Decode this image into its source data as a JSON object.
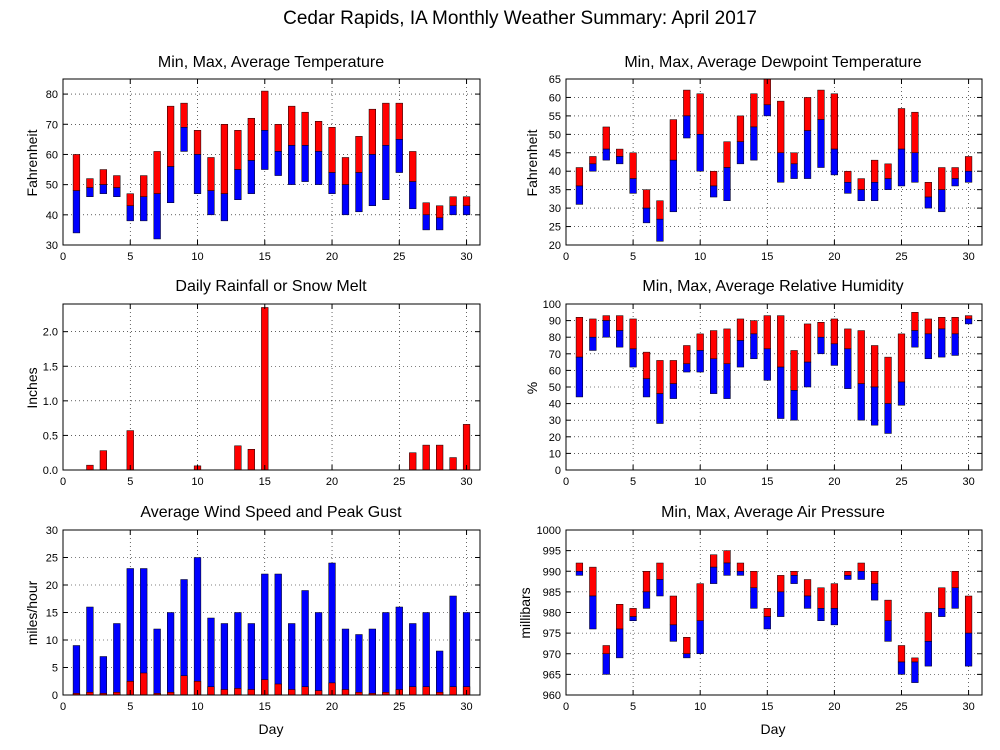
{
  "figure": {
    "title": "Cedar Rapids, IA Monthly Weather Summary: April 2017"
  },
  "colors": {
    "upper": "#ff0000",
    "lower": "#0000ff",
    "outline": "#000000",
    "grid": "#000000"
  },
  "chart_data": [
    {
      "id": "temperature",
      "type": "bar",
      "style": "range",
      "title": "Min, Max, Average Temperature",
      "xlabel": "",
      "ylabel": "Fahrenheit",
      "xlim": [
        0,
        31
      ],
      "ylim": [
        30,
        85
      ],
      "xticks": [
        0,
        5,
        10,
        15,
        20,
        25,
        30
      ],
      "yticks": [
        30,
        40,
        50,
        60,
        70,
        80
      ],
      "x": [
        1,
        2,
        3,
        4,
        5,
        6,
        7,
        8,
        9,
        10,
        11,
        12,
        13,
        14,
        15,
        16,
        17,
        18,
        19,
        20,
        21,
        22,
        23,
        24,
        25,
        26,
        27,
        28,
        29,
        30
      ],
      "min": [
        34,
        46,
        47,
        46,
        38,
        38,
        32,
        44,
        61,
        47,
        40,
        38,
        45,
        47,
        55,
        53,
        50,
        51,
        50,
        47,
        40,
        41,
        43,
        45,
        54,
        42,
        35,
        35,
        40,
        40
      ],
      "avg": [
        48,
        49,
        50,
        49,
        43,
        46,
        47,
        56,
        69,
        60,
        48,
        47,
        55,
        58,
        68,
        61,
        63,
        63,
        61,
        54,
        50,
        54,
        60,
        63,
        65,
        51,
        40,
        39,
        43,
        43
      ],
      "max": [
        60,
        52,
        55,
        53,
        47,
        53,
        61,
        76,
        77,
        68,
        59,
        70,
        68,
        72,
        81,
        70,
        76,
        74,
        71,
        69,
        59,
        66,
        75,
        77,
        77,
        61,
        44,
        43,
        46,
        46
      ]
    },
    {
      "id": "dewpoint",
      "type": "bar",
      "style": "range",
      "title": "Min, Max, Average Dewpoint Temperature",
      "xlabel": "",
      "ylabel": "Fahrenheit",
      "xlim": [
        0,
        31
      ],
      "ylim": [
        20,
        65
      ],
      "xticks": [
        0,
        5,
        10,
        15,
        20,
        25,
        30
      ],
      "yticks": [
        20,
        25,
        30,
        35,
        40,
        45,
        50,
        55,
        60,
        65
      ],
      "x": [
        1,
        2,
        3,
        4,
        5,
        6,
        7,
        8,
        9,
        10,
        11,
        12,
        13,
        14,
        15,
        16,
        17,
        18,
        19,
        20,
        21,
        22,
        23,
        24,
        25,
        26,
        27,
        28,
        29,
        30
      ],
      "min": [
        31,
        40,
        43,
        42,
        34,
        26,
        21,
        29,
        49,
        40,
        33,
        32,
        42,
        43,
        55,
        37,
        38,
        38,
        41,
        39,
        34,
        32,
        32,
        35,
        36,
        37,
        30,
        29,
        36,
        37
      ],
      "avg": [
        36,
        42,
        46,
        44,
        38,
        30,
        27,
        43,
        55,
        50,
        36,
        41,
        48,
        52,
        58,
        45,
        42,
        51,
        54,
        46,
        37,
        35,
        37,
        38,
        46,
        45,
        33,
        35,
        38,
        40
      ],
      "max": [
        41,
        44,
        52,
        46,
        45,
        35,
        32,
        54,
        62,
        61,
        40,
        48,
        55,
        61,
        65,
        59,
        45,
        60,
        62,
        61,
        40,
        38,
        43,
        42,
        57,
        56,
        37,
        41,
        41,
        44
      ]
    },
    {
      "id": "rainfall",
      "type": "bar",
      "style": "single",
      "title": "Daily Rainfall or Snow Melt",
      "xlabel": "",
      "ylabel": "Inches",
      "xlim": [
        0,
        31
      ],
      "ylim": [
        0,
        2.4
      ],
      "xticks": [
        0,
        5,
        10,
        15,
        20,
        25,
        30
      ],
      "yticks": [
        0,
        0.5,
        1,
        1.5,
        2
      ],
      "ytick_labels": [
        "0.0",
        "0.5",
        "1.0",
        "1.5",
        "2.0"
      ],
      "x": [
        1,
        2,
        3,
        4,
        5,
        6,
        7,
        8,
        9,
        10,
        11,
        12,
        13,
        14,
        15,
        16,
        17,
        18,
        19,
        20,
        21,
        22,
        23,
        24,
        25,
        26,
        27,
        28,
        29,
        30
      ],
      "values": [
        0,
        0.07,
        0.28,
        0,
        0.57,
        0,
        0,
        0,
        0,
        0.06,
        0,
        0,
        0.35,
        0.3,
        2.35,
        0,
        0,
        0,
        0,
        0,
        0,
        0,
        0,
        0,
        0,
        0.25,
        0.36,
        0.36,
        0.18,
        0.66
      ]
    },
    {
      "id": "humidity",
      "type": "bar",
      "style": "range",
      "title": "Min, Max, Average Relative Humidity",
      "xlabel": "",
      "ylabel": "%",
      "xlim": [
        0,
        31
      ],
      "ylim": [
        0,
        100
      ],
      "xticks": [
        0,
        5,
        10,
        15,
        20,
        25,
        30
      ],
      "yticks": [
        0,
        10,
        20,
        30,
        40,
        50,
        60,
        70,
        80,
        90,
        100
      ],
      "x": [
        1,
        2,
        3,
        4,
        5,
        6,
        7,
        8,
        9,
        10,
        11,
        12,
        13,
        14,
        15,
        16,
        17,
        18,
        19,
        20,
        21,
        22,
        23,
        24,
        25,
        26,
        27,
        28,
        29,
        30
      ],
      "min": [
        44,
        72,
        80,
        74,
        62,
        44,
        28,
        43,
        59,
        59,
        46,
        43,
        62,
        67,
        54,
        31,
        30,
        50,
        70,
        63,
        49,
        30,
        27,
        22,
        39,
        74,
        67,
        68,
        69,
        88
      ],
      "avg": [
        68,
        80,
        90,
        84,
        73,
        55,
        46,
        52,
        64,
        72,
        67,
        64,
        78,
        82,
        73,
        62,
        48,
        65,
        80,
        76,
        73,
        52,
        50,
        40,
        53,
        84,
        82,
        85,
        82,
        91
      ],
      "max": [
        92,
        91,
        93,
        93,
        91,
        71,
        66,
        66,
        75,
        82,
        84,
        85,
        91,
        90,
        93,
        93,
        72,
        88,
        89,
        91,
        85,
        84,
        75,
        68,
        82,
        95,
        91,
        92,
        92,
        93
      ]
    },
    {
      "id": "wind",
      "type": "bar",
      "style": "overlay",
      "title": "Average Wind Speed and Peak Gust",
      "xlabel": "Day",
      "ylabel": "miles/hour",
      "xlim": [
        0,
        31
      ],
      "ylim": [
        0,
        30
      ],
      "xticks": [
        0,
        5,
        10,
        15,
        20,
        25,
        30
      ],
      "yticks": [
        0,
        5,
        10,
        15,
        20,
        25,
        30
      ],
      "x": [
        1,
        2,
        3,
        4,
        5,
        6,
        7,
        8,
        9,
        10,
        11,
        12,
        13,
        14,
        15,
        16,
        17,
        18,
        19,
        20,
        21,
        22,
        23,
        24,
        25,
        26,
        27,
        28,
        29,
        30
      ],
      "series": [
        {
          "name": "",
          "values": [
            9,
            16,
            7,
            13,
            23,
            23,
            12,
            15,
            21,
            25,
            14,
            13,
            15,
            13,
            22,
            22,
            13,
            19,
            15,
            24,
            12,
            11,
            12,
            15,
            16,
            13,
            15,
            8,
            18,
            15
          ]
        },
        {
          "name": "",
          "values": [
            0.3,
            0.5,
            0.3,
            0.5,
            2.5,
            4,
            0.3,
            0.5,
            3.5,
            2.5,
            1.5,
            1,
            1.2,
            1,
            2.8,
            2,
            1,
            1.5,
            0.8,
            2.2,
            1,
            0.5,
            0.3,
            0.5,
            1,
            1.5,
            1.5,
            0.5,
            1.5,
            1.5
          ]
        }
      ]
    },
    {
      "id": "pressure",
      "type": "bar",
      "style": "range",
      "title": "Min, Max, Average Air Pressure",
      "xlabel": "Day",
      "ylabel": "millibars",
      "xlim": [
        0,
        31
      ],
      "ylim": [
        960,
        1000
      ],
      "xticks": [
        0,
        5,
        10,
        15,
        20,
        25,
        30
      ],
      "yticks": [
        960,
        965,
        970,
        975,
        980,
        985,
        990,
        995,
        1000
      ],
      "x": [
        1,
        2,
        3,
        4,
        5,
        6,
        7,
        8,
        9,
        10,
        11,
        12,
        13,
        14,
        15,
        16,
        17,
        18,
        19,
        20,
        21,
        22,
        23,
        24,
        25,
        26,
        27,
        28,
        29,
        30
      ],
      "min": [
        989,
        976,
        965,
        969,
        978,
        981,
        984,
        973,
        969,
        970,
        987,
        989,
        989,
        981,
        976,
        979,
        987,
        981,
        978,
        977,
        988,
        988,
        983,
        973,
        965,
        963,
        967,
        979,
        981,
        967
      ],
      "avg": [
        990,
        984,
        970,
        976,
        979,
        985,
        988,
        977,
        970,
        978,
        991,
        992,
        990,
        986,
        979,
        985,
        989,
        984,
        981,
        981,
        989,
        990,
        987,
        978,
        968,
        968,
        973,
        981,
        986,
        975
      ],
      "max": [
        992,
        991,
        972,
        982,
        981,
        990,
        992,
        984,
        974,
        987,
        994,
        995,
        992,
        990,
        981,
        989,
        990,
        988,
        986,
        987,
        990,
        992,
        990,
        983,
        972,
        969,
        980,
        986,
        990,
        984
      ]
    }
  ]
}
